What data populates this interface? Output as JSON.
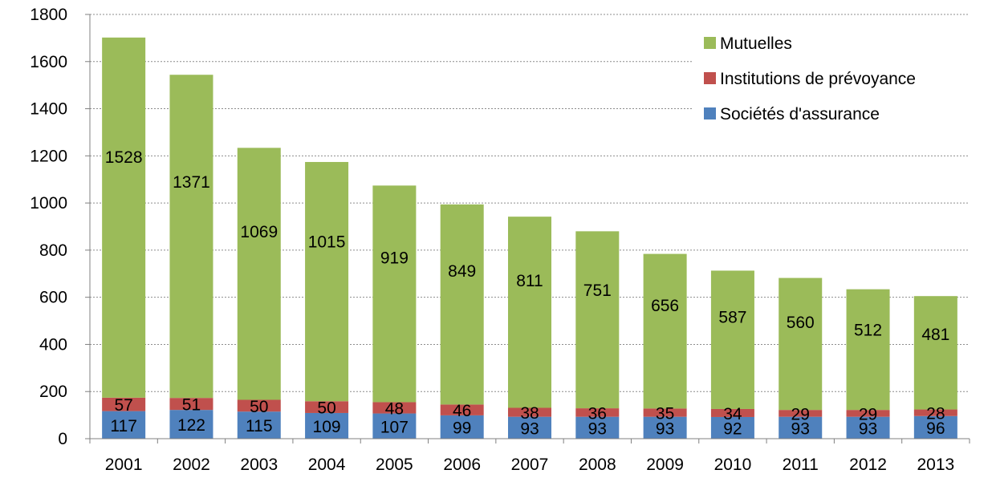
{
  "chart_data": {
    "type": "bar",
    "stacked": true,
    "categories": [
      "2001",
      "2002",
      "2003",
      "2004",
      "2005",
      "2006",
      "2007",
      "2008",
      "2009",
      "2010",
      "2011",
      "2012",
      "2013"
    ],
    "series": [
      {
        "name": "Sociétés d'assurance",
        "color": "#4F81BD",
        "values": [
          117,
          122,
          115,
          109,
          107,
          99,
          93,
          93,
          93,
          92,
          93,
          93,
          96
        ]
      },
      {
        "name": "Institutions de prévoyance",
        "color": "#C0504D",
        "values": [
          57,
          51,
          50,
          50,
          48,
          46,
          38,
          36,
          35,
          34,
          29,
          29,
          28
        ]
      },
      {
        "name": "Mutuelles",
        "color": "#9BBB59",
        "values": [
          1528,
          1371,
          1069,
          1015,
          919,
          849,
          811,
          751,
          656,
          587,
          560,
          512,
          481
        ]
      }
    ],
    "ylim": [
      0,
      1800
    ],
    "yticks": [
      "0",
      "200",
      "400",
      "600",
      "800",
      "1000",
      "1200",
      "1400",
      "1600",
      "1800"
    ],
    "grid": true,
    "legend_position": "top-right",
    "legend_order": [
      "Mutuelles",
      "Institutions de prévoyance",
      "Sociétés d'assurance"
    ],
    "title": "",
    "xlabel": "",
    "ylabel": ""
  }
}
